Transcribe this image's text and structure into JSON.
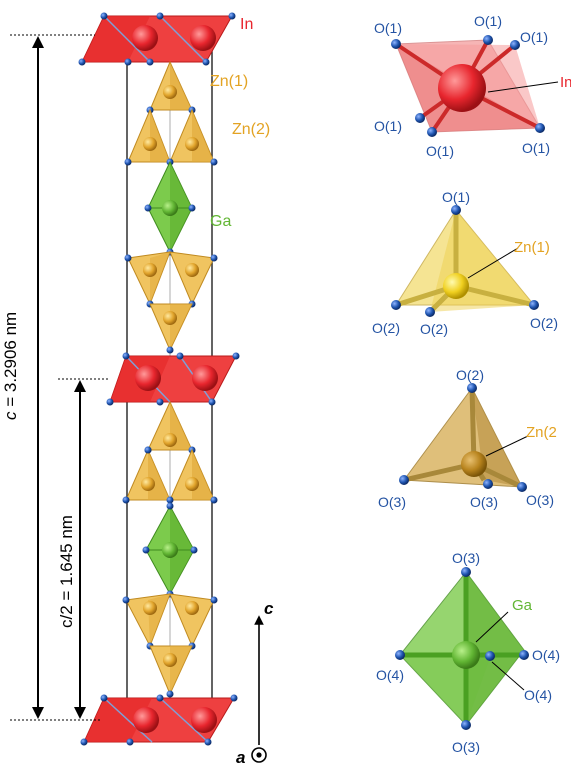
{
  "colors": {
    "in": "#e8262e",
    "in_face": "#f08a8a",
    "zn1": "#e2b04a",
    "zn1_face": "#f0d07a",
    "zn2": "#e0a030",
    "ga": "#6abf3c",
    "ga_face": "#8fd466",
    "oxygen": "#1f55b0",
    "in_label": "#e8262e",
    "zn_label": "#e3a323",
    "ga_label": "#62b634",
    "o_label": "#2453a3"
  },
  "column": {
    "labels": {
      "in": "In",
      "zn1": "Zn(1)",
      "zn2": "Zn(2)",
      "ga": "Ga"
    },
    "dimensions": {
      "c_symbol": "c",
      "c_value": " = 3.2906 nm",
      "half_symbol": "c/2",
      "half_value": " = 1.645 nm"
    },
    "axes": {
      "c": "c",
      "a": "a"
    }
  },
  "polyhedra": {
    "in_site": {
      "center": "In",
      "oxygens": [
        "O(1)",
        "O(1)",
        "O(1)",
        "O(1)",
        "O(1)",
        "O(1)"
      ]
    },
    "zn1_site": {
      "center": "Zn(1)",
      "oxygens": [
        "O(1)",
        "O(2)",
        "O(2)",
        "O(2)"
      ]
    },
    "zn2_site": {
      "center": "Zn(2",
      "oxygens": [
        "O(2)",
        "O(3)",
        "O(3)",
        "O(3)"
      ]
    },
    "ga_site": {
      "center": "Ga",
      "oxygens": [
        "O(3)",
        "O(4)",
        "O(4)",
        "O(4)",
        "O(3)"
      ]
    }
  }
}
